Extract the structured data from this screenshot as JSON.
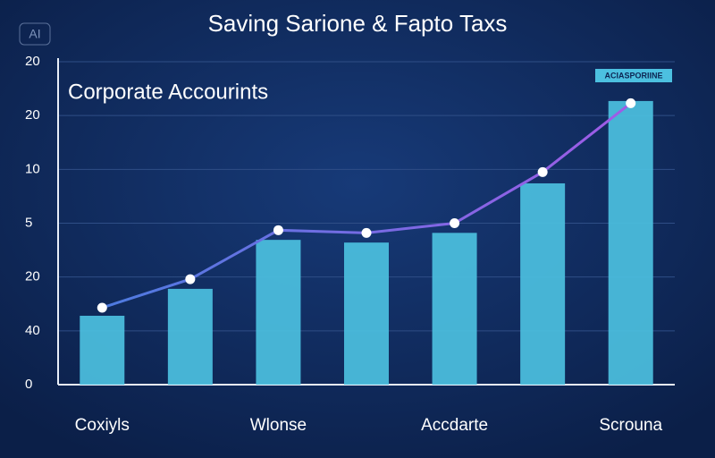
{
  "badge": "AI",
  "chart_data": {
    "type": "bar_line",
    "title": "Saving Sarione & Fapto Taxs",
    "subtitle": "Corporate Accourints",
    "categories": [
      "Coxiyls",
      null,
      "Wlonse",
      null,
      "Accdarte",
      null,
      "Scrouna"
    ],
    "series": [
      {
        "name": "ACIASPORIINE",
        "kind": "bar",
        "color": "#4cc0e0",
        "values": [
          1.28,
          1.78,
          2.69,
          2.64,
          2.82,
          3.74,
          5.27
        ]
      },
      {
        "kind": "line",
        "color": "#9b5de5",
        "values": [
          1.43,
          1.96,
          2.87,
          2.82,
          3.0,
          3.95,
          5.23
        ]
      }
    ],
    "ylim": [
      0,
      6
    ],
    "yticks": [
      {
        "value": 0,
        "label": "0"
      },
      {
        "value": 1,
        "label": "40"
      },
      {
        "value": 2,
        "label": "20"
      },
      {
        "value": 3,
        "label": "5"
      },
      {
        "value": 4,
        "label": "10"
      },
      {
        "value": 5,
        "label": "20"
      },
      {
        "value": 6,
        "label": "20"
      }
    ],
    "grid": true,
    "legend": "top-right"
  }
}
